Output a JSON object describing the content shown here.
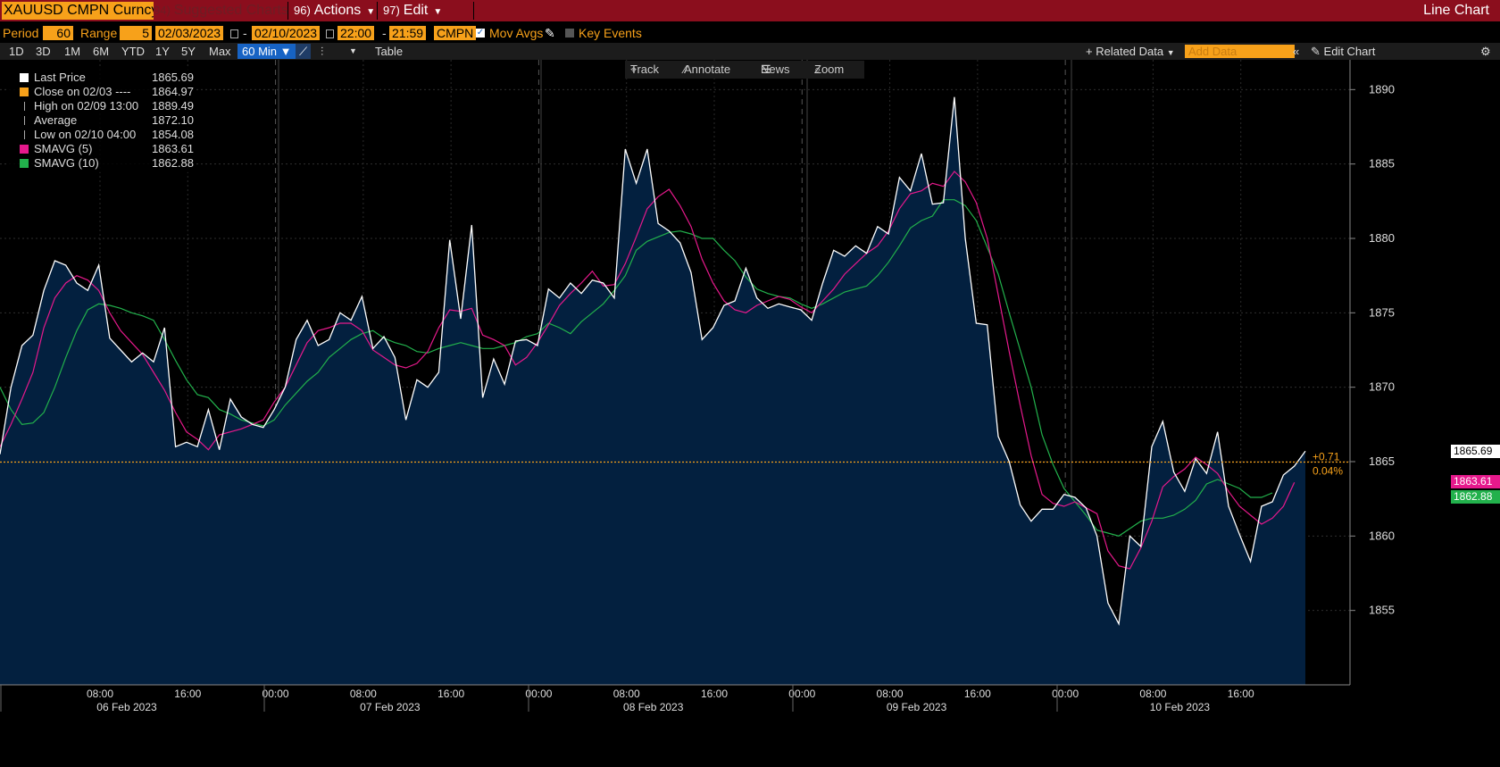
{
  "header": {
    "ticker": "XAUUSD CMPN Curncy",
    "suggested_num": "94)",
    "suggested_label": "Suggested Charts",
    "actions_num": "96)",
    "actions_label": "Actions",
    "edit_num": "97)",
    "edit_label": "Edit",
    "title": "Line Chart"
  },
  "params": {
    "period_label": "Period",
    "period_value": "60",
    "range_label": "Range",
    "range_value": "5",
    "start_date": "02/03/2023",
    "end_date": "02/10/2023",
    "start_time": "22:00",
    "end_time": "21:59",
    "source": "CMPN",
    "mov_avgs_label": "Mov Avgs",
    "key_events_label": "Key Events"
  },
  "toolbar": {
    "ranges": [
      "1D",
      "3D",
      "1M",
      "6M",
      "YTD",
      "1Y",
      "5Y",
      "Max"
    ],
    "selected_interval": "60 Min",
    "table_label": "Table",
    "related_data_label": "Related Data",
    "add_data_placeholder": "Add Data",
    "edit_chart_label": "Edit Chart"
  },
  "tools": {
    "track": "Track",
    "annotate": "Annotate",
    "news": "News",
    "zoom": "Zoom"
  },
  "legend": [
    {
      "name": "Last Price",
      "value": "1865.69",
      "color": "#ffffff"
    },
    {
      "name": "Close on 02/03 ----",
      "value": "1864.97",
      "color": "#f7a11a"
    },
    {
      "name": "High on 02/09 13:00",
      "value": "1889.49",
      "color": "#aaaaaa"
    },
    {
      "name": "Average",
      "value": "1872.10",
      "color": "#aaaaaa"
    },
    {
      "name": "Low on 02/10 04:00",
      "value": "1854.08",
      "color": "#aaaaaa"
    },
    {
      "name": "SMAVG (5)",
      "value": "1863.61",
      "color": "#e6198c"
    },
    {
      "name": "SMAVG (10)",
      "value": "1862.88",
      "color": "#22b14c"
    }
  ],
  "chart_data": {
    "type": "line",
    "ylim": [
      1850,
      1892
    ],
    "yticks": [
      1855,
      1860,
      1865,
      1870,
      1875,
      1880,
      1885,
      1890
    ],
    "x_range_hours": [
      0,
      150
    ],
    "xticks": [
      {
        "label": "08:00",
        "date": "06 Feb 2023"
      },
      {
        "label": "16:00",
        "date": ""
      },
      {
        "label": "00:00",
        "date": ""
      },
      {
        "label": "08:00",
        "date": "07 Feb 2023"
      },
      {
        "label": "16:00",
        "date": ""
      },
      {
        "label": "00:00",
        "date": ""
      },
      {
        "label": "08:00",
        "date": "08 Feb 2023"
      },
      {
        "label": "16:00",
        "date": ""
      },
      {
        "label": "00:00",
        "date": ""
      },
      {
        "label": "08:00",
        "date": "09 Feb 2023"
      },
      {
        "label": "16:00",
        "date": ""
      },
      {
        "label": "00:00",
        "date": ""
      },
      {
        "label": "08:00",
        "date": "10 Feb 2023"
      },
      {
        "label": "16:00",
        "date": ""
      }
    ],
    "series": [
      {
        "name": "Last Price",
        "color": "#ffffff",
        "values": [
          1865.5,
          1870.0,
          1872.8,
          1873.5,
          1876.5,
          1878.5,
          1878.2,
          1877.0,
          1876.5,
          1878.2,
          1873.3,
          1872.5,
          1871.7,
          1872.3,
          1871.7,
          1874.0,
          1866.0,
          1866.3,
          1866.0,
          1868.5,
          1865.8,
          1869.2,
          1868.0,
          1867.5,
          1867.3,
          1868.5,
          1870.0,
          1873.2,
          1874.5,
          1872.8,
          1873.2,
          1875.0,
          1874.5,
          1876.1,
          1872.6,
          1873.4,
          1872.0,
          1867.8,
          1870.5,
          1870.0,
          1871.0,
          1879.9,
          1874.6,
          1880.9,
          1869.3,
          1871.9,
          1870.2,
          1873.1,
          1873.2,
          1872.8,
          1876.6,
          1876.0,
          1877.0,
          1876.3,
          1877.2,
          1877.0,
          1876.0,
          1886.0,
          1883.7,
          1886.0,
          1881.0,
          1880.5,
          1879.7,
          1877.7,
          1873.2,
          1874.0,
          1875.5,
          1875.8,
          1878.0,
          1876.0,
          1875.3,
          1875.6,
          1875.4,
          1875.2,
          1874.5,
          1877.0,
          1879.2,
          1878.8,
          1879.5,
          1879.0,
          1880.8,
          1880.3,
          1884.1,
          1883.2,
          1885.7,
          1882.3,
          1882.4,
          1889.5,
          1880.0,
          1874.3,
          1874.2,
          1866.7,
          1865.0,
          1862.1,
          1861.0,
          1861.8,
          1861.8,
          1862.8,
          1862.6,
          1861.9,
          1860.0,
          1855.5,
          1854.1,
          1860.0,
          1859.3,
          1866.0,
          1867.7,
          1864.3,
          1863.0,
          1865.2,
          1864.2,
          1867.0,
          1862.0,
          1860.1,
          1858.3,
          1862.0,
          1862.3,
          1864.1,
          1864.7,
          1865.7
        ]
      },
      {
        "name": "SMAVG (5)",
        "color": "#e6198c",
        "values": [
          1866.0,
          1867.5,
          1869.2,
          1871.0,
          1874.0,
          1876.0,
          1877.0,
          1877.5,
          1877.2,
          1876.5,
          1875.0,
          1873.8,
          1873.0,
          1872.2,
          1871.0,
          1869.8,
          1868.3,
          1867.0,
          1866.5,
          1865.8,
          1866.8,
          1867.0,
          1867.2,
          1867.5,
          1867.8,
          1869.0,
          1870.0,
          1871.5,
          1873.0,
          1873.8,
          1874.0,
          1874.3,
          1874.3,
          1873.8,
          1872.5,
          1872.0,
          1871.5,
          1871.3,
          1871.6,
          1872.4,
          1874.0,
          1875.2,
          1875.1,
          1875.3,
          1873.5,
          1873.2,
          1872.8,
          1871.5,
          1872.0,
          1873.0,
          1874.2,
          1875.5,
          1876.3,
          1877.0,
          1877.8,
          1876.8,
          1876.9,
          1878.3,
          1880.1,
          1882.0,
          1882.8,
          1883.3,
          1882.2,
          1880.8,
          1878.6,
          1877.0,
          1875.8,
          1875.2,
          1875.0,
          1875.5,
          1875.8,
          1876.1,
          1875.9,
          1875.4,
          1875.0,
          1875.8,
          1876.6,
          1877.6,
          1878.3,
          1879.0,
          1879.5,
          1880.5,
          1882.0,
          1883.0,
          1883.2,
          1883.7,
          1883.5,
          1884.5,
          1883.8,
          1882.4,
          1880.0,
          1876.2,
          1872.4,
          1868.8,
          1865.4,
          1862.8,
          1862.2,
          1862.0,
          1862.3,
          1861.9,
          1861.5,
          1859.0,
          1858.0,
          1857.8,
          1859.2,
          1861.0,
          1863.3,
          1864.0,
          1864.5,
          1865.3,
          1864.8,
          1864.2,
          1863.0,
          1862.0,
          1861.4,
          1860.8,
          1861.2,
          1862.0,
          1863.6
        ]
      },
      {
        "name": "SMAVG (10)",
        "color": "#22b14c",
        "values": [
          1870.0,
          1868.5,
          1867.5,
          1867.6,
          1868.3,
          1870.0,
          1872.0,
          1873.8,
          1875.2,
          1875.6,
          1875.5,
          1875.3,
          1875.0,
          1874.8,
          1874.5,
          1873.2,
          1871.8,
          1870.5,
          1869.5,
          1869.3,
          1868.5,
          1868.2,
          1867.8,
          1867.6,
          1867.4,
          1867.8,
          1868.8,
          1869.6,
          1870.4,
          1871.0,
          1872.0,
          1872.6,
          1873.2,
          1873.6,
          1873.8,
          1873.3,
          1873.0,
          1872.8,
          1872.4,
          1872.3,
          1872.6,
          1872.8,
          1873.0,
          1872.8,
          1872.6,
          1872.6,
          1872.8,
          1873.0,
          1873.4,
          1873.6,
          1874.3,
          1874.0,
          1873.6,
          1874.4,
          1875.0,
          1875.6,
          1876.5,
          1877.5,
          1879.2,
          1879.8,
          1880.1,
          1880.4,
          1880.5,
          1880.3,
          1880.0,
          1880.0,
          1879.2,
          1878.5,
          1877.4,
          1876.6,
          1876.3,
          1876.1,
          1876.0,
          1875.6,
          1875.3,
          1875.6,
          1876.0,
          1876.4,
          1876.6,
          1876.8,
          1877.5,
          1878.4,
          1879.5,
          1880.7,
          1881.2,
          1881.5,
          1882.6,
          1882.6,
          1882.2,
          1881.2,
          1879.4,
          1877.6,
          1875.0,
          1872.5,
          1870.0,
          1866.8,
          1864.8,
          1863.2,
          1862.3,
          1861.4,
          1860.4,
          1860.2,
          1860.0,
          1860.5,
          1861.0,
          1861.2,
          1861.2,
          1861.4,
          1861.8,
          1862.4,
          1863.5,
          1863.8,
          1863.5,
          1863.2,
          1862.6,
          1862.6,
          1862.9
        ]
      }
    ],
    "reference_line": {
      "name": "Close on 02/03",
      "value": 1864.97,
      "color": "#f7a11a"
    },
    "change_label": "+0.71",
    "change_pct": "0.04%",
    "end_tags": [
      {
        "text": "1865.69",
        "value": 1865.69,
        "bg": "#ffffff",
        "fg": "#000000"
      },
      {
        "text": "1863.61",
        "value": 1863.61,
        "bg": "#e6198c",
        "fg": "#ffffff"
      },
      {
        "text": "1862.88",
        "value": 1862.88,
        "bg": "#22b14c",
        "fg": "#ffffff"
      }
    ]
  }
}
